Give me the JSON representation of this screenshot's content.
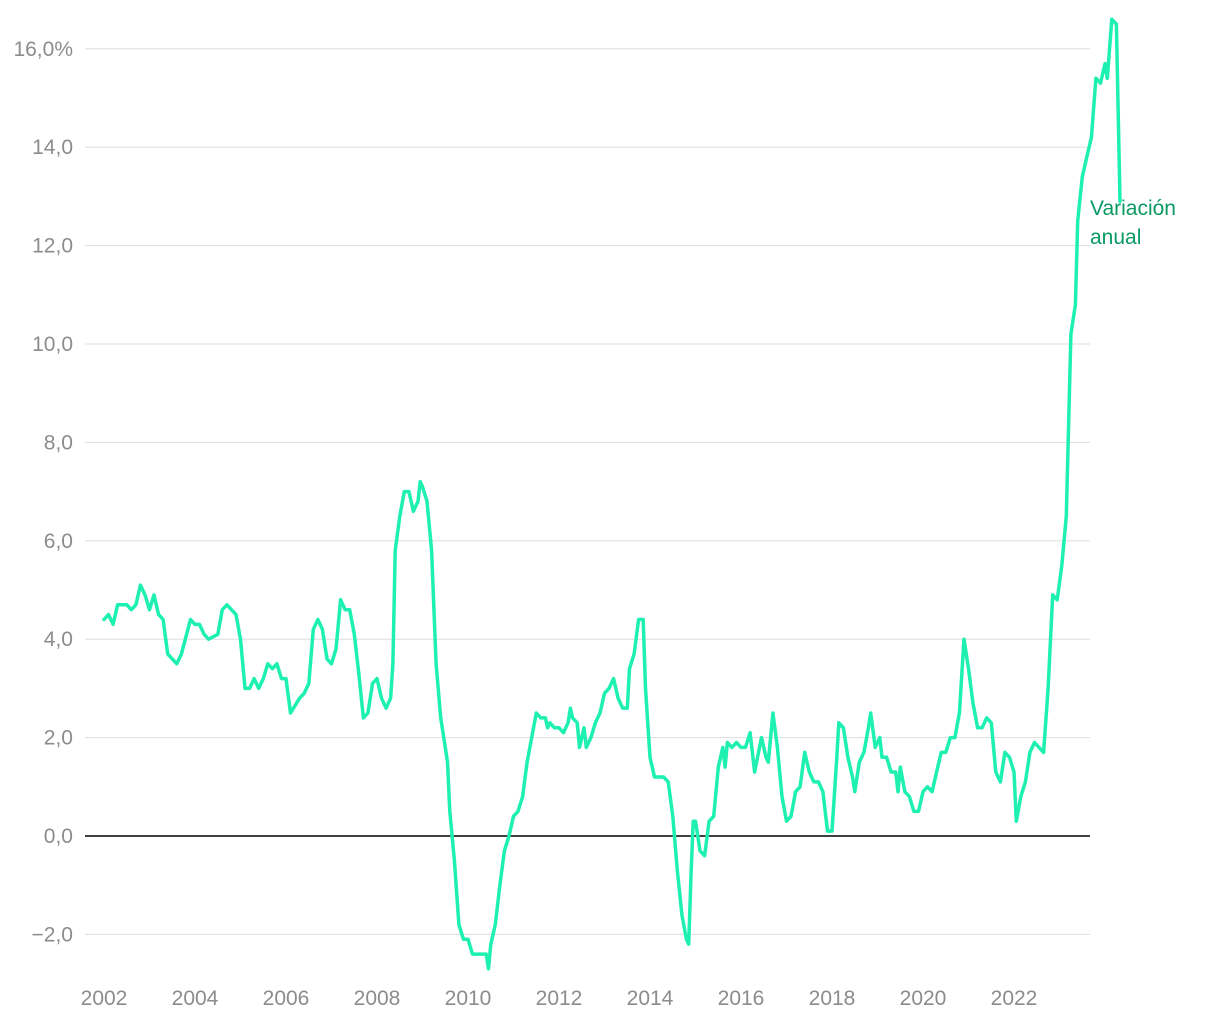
{
  "chart_data": {
    "type": "line",
    "title": "",
    "xlabel": "",
    "ylabel": "",
    "ylim": [
      -2.6,
      16.6
    ],
    "xlim": [
      2001.5,
      2024.0
    ],
    "grid": true,
    "zero_line": true,
    "colors": {
      "line": "#1df0b0",
      "label": "#0a9a63",
      "grid": "#dddddd",
      "zero_line": "#000000",
      "tick": "#8c8c8c"
    },
    "y_ticks": [
      {
        "value": 16,
        "label": "16,0%"
      },
      {
        "value": 14,
        "label": "14,0"
      },
      {
        "value": 12,
        "label": "12,0"
      },
      {
        "value": 10,
        "label": "10,0"
      },
      {
        "value": 8,
        "label": "8,0"
      },
      {
        "value": 6,
        "label": "6,0"
      },
      {
        "value": 4,
        "label": "4,0"
      },
      {
        "value": 2,
        "label": "2,0"
      },
      {
        "value": 0,
        "label": "0,0"
      },
      {
        "value": -2,
        "label": "−2,0"
      }
    ],
    "x_ticks": [
      {
        "value": 2002,
        "label": "2002"
      },
      {
        "value": 2004,
        "label": "2004"
      },
      {
        "value": 2006,
        "label": "2006"
      },
      {
        "value": 2008,
        "label": "2008"
      },
      {
        "value": 2010,
        "label": "2010"
      },
      {
        "value": 2012,
        "label": "2012"
      },
      {
        "value": 2014,
        "label": "2014"
      },
      {
        "value": 2016,
        "label": "2016"
      },
      {
        "value": 2018,
        "label": "2018"
      },
      {
        "value": 2020,
        "label": "2020"
      },
      {
        "value": 2022,
        "label": "2022"
      }
    ],
    "series": [
      {
        "label_lines": [
          "Variación",
          "anual"
        ],
        "points": [
          [
            2002.0,
            4.4
          ],
          [
            2002.1,
            4.5
          ],
          [
            2002.2,
            4.3
          ],
          [
            2002.3,
            4.7
          ],
          [
            2002.5,
            4.7
          ],
          [
            2002.6,
            4.6
          ],
          [
            2002.7,
            4.7
          ],
          [
            2002.8,
            5.1
          ],
          [
            2002.9,
            4.9
          ],
          [
            2003.0,
            4.6
          ],
          [
            2003.1,
            4.9
          ],
          [
            2003.2,
            4.5
          ],
          [
            2003.3,
            4.4
          ],
          [
            2003.4,
            3.7
          ],
          [
            2003.6,
            3.5
          ],
          [
            2003.7,
            3.7
          ],
          [
            2003.9,
            4.4
          ],
          [
            2004.0,
            4.3
          ],
          [
            2004.1,
            4.3
          ],
          [
            2004.2,
            4.1
          ],
          [
            2004.3,
            4.0
          ],
          [
            2004.5,
            4.1
          ],
          [
            2004.6,
            4.6
          ],
          [
            2004.7,
            4.7
          ],
          [
            2004.9,
            4.5
          ],
          [
            2005.0,
            4.0
          ],
          [
            2005.1,
            3.0
          ],
          [
            2005.2,
            3.0
          ],
          [
            2005.3,
            3.2
          ],
          [
            2005.4,
            3.0
          ],
          [
            2005.5,
            3.2
          ],
          [
            2005.6,
            3.5
          ],
          [
            2005.7,
            3.4
          ],
          [
            2005.8,
            3.5
          ],
          [
            2005.9,
            3.2
          ],
          [
            2006.0,
            3.2
          ],
          [
            2006.1,
            2.5
          ],
          [
            2006.3,
            2.8
          ],
          [
            2006.4,
            2.9
          ],
          [
            2006.5,
            3.1
          ],
          [
            2006.6,
            4.2
          ],
          [
            2006.7,
            4.4
          ],
          [
            2006.8,
            4.2
          ],
          [
            2006.9,
            3.6
          ],
          [
            2007.0,
            3.5
          ],
          [
            2007.1,
            3.8
          ],
          [
            2007.2,
            4.8
          ],
          [
            2007.3,
            4.6
          ],
          [
            2007.4,
            4.6
          ],
          [
            2007.5,
            4.1
          ],
          [
            2007.6,
            3.3
          ],
          [
            2007.7,
            2.4
          ],
          [
            2007.8,
            2.5
          ],
          [
            2007.9,
            3.1
          ],
          [
            2008.0,
            3.2
          ],
          [
            2008.1,
            2.8
          ],
          [
            2008.2,
            2.6
          ],
          [
            2008.3,
            2.8
          ],
          [
            2008.35,
            3.5
          ],
          [
            2008.4,
            5.8
          ],
          [
            2008.5,
            6.5
          ],
          [
            2008.6,
            7.0
          ],
          [
            2008.7,
            7.0
          ],
          [
            2008.8,
            6.6
          ],
          [
            2008.9,
            6.8
          ],
          [
            2008.95,
            7.2
          ],
          [
            2009.0,
            7.1
          ],
          [
            2009.1,
            6.8
          ],
          [
            2009.2,
            5.8
          ],
          [
            2009.3,
            3.5
          ],
          [
            2009.4,
            2.4
          ],
          [
            2009.5,
            1.8
          ],
          [
            2009.55,
            1.5
          ],
          [
            2009.6,
            0.5
          ],
          [
            2009.7,
            -0.5
          ],
          [
            2009.8,
            -1.8
          ],
          [
            2009.9,
            -2.1
          ],
          [
            2010.0,
            -2.1
          ],
          [
            2010.1,
            -2.4
          ],
          [
            2010.2,
            -2.4
          ],
          [
            2010.3,
            -2.4
          ],
          [
            2010.4,
            -2.4
          ],
          [
            2010.45,
            -2.7
          ],
          [
            2010.5,
            -2.2
          ],
          [
            2010.6,
            -1.8
          ],
          [
            2010.7,
            -1.0
          ],
          [
            2010.8,
            -0.3
          ],
          [
            2010.9,
            0.0
          ],
          [
            2011.0,
            0.4
          ],
          [
            2011.1,
            0.5
          ],
          [
            2011.2,
            0.8
          ],
          [
            2011.3,
            1.5
          ],
          [
            2011.4,
            2.0
          ],
          [
            2011.5,
            2.5
          ],
          [
            2011.6,
            2.4
          ],
          [
            2011.7,
            2.4
          ],
          [
            2011.75,
            2.2
          ],
          [
            2011.8,
            2.3
          ],
          [
            2011.9,
            2.2
          ],
          [
            2012.0,
            2.2
          ],
          [
            2012.1,
            2.1
          ],
          [
            2012.2,
            2.3
          ],
          [
            2012.25,
            2.6
          ],
          [
            2012.3,
            2.4
          ],
          [
            2012.4,
            2.3
          ],
          [
            2012.45,
            1.8
          ],
          [
            2012.55,
            2.2
          ],
          [
            2012.6,
            1.8
          ],
          [
            2012.7,
            2.0
          ],
          [
            2012.8,
            2.3
          ],
          [
            2012.9,
            2.5
          ],
          [
            2013.0,
            2.9
          ],
          [
            2013.1,
            3.0
          ],
          [
            2013.2,
            3.2
          ],
          [
            2013.3,
            2.8
          ],
          [
            2013.4,
            2.6
          ],
          [
            2013.5,
            2.6
          ],
          [
            2013.55,
            3.4
          ],
          [
            2013.65,
            3.7
          ],
          [
            2013.75,
            4.4
          ],
          [
            2013.85,
            4.4
          ],
          [
            2013.9,
            3.0
          ],
          [
            2014.0,
            1.6
          ],
          [
            2014.1,
            1.2
          ],
          [
            2014.2,
            1.2
          ],
          [
            2014.3,
            1.2
          ],
          [
            2014.4,
            1.1
          ],
          [
            2014.5,
            0.4
          ],
          [
            2014.6,
            -0.7
          ],
          [
            2014.7,
            -1.6
          ],
          [
            2014.8,
            -2.1
          ],
          [
            2014.85,
            -2.2
          ],
          [
            2014.9,
            -0.8
          ],
          [
            2014.95,
            0.3
          ],
          [
            2015.0,
            0.3
          ],
          [
            2015.1,
            -0.3
          ],
          [
            2015.2,
            -0.4
          ],
          [
            2015.3,
            0.3
          ],
          [
            2015.4,
            0.4
          ],
          [
            2015.5,
            1.4
          ],
          [
            2015.6,
            1.8
          ],
          [
            2015.65,
            1.4
          ],
          [
            2015.7,
            1.9
          ],
          [
            2015.8,
            1.8
          ],
          [
            2015.9,
            1.9
          ],
          [
            2016.0,
            1.8
          ],
          [
            2016.1,
            1.8
          ],
          [
            2016.2,
            2.1
          ],
          [
            2016.3,
            1.3
          ],
          [
            2016.45,
            2.0
          ],
          [
            2016.55,
            1.6
          ],
          [
            2016.6,
            1.5
          ],
          [
            2016.7,
            2.5
          ],
          [
            2016.8,
            1.8
          ],
          [
            2016.9,
            0.8
          ],
          [
            2017.0,
            0.3
          ],
          [
            2017.1,
            0.4
          ],
          [
            2017.2,
            0.9
          ],
          [
            2017.3,
            1.0
          ],
          [
            2017.4,
            1.7
          ],
          [
            2017.5,
            1.3
          ],
          [
            2017.6,
            1.1
          ],
          [
            2017.7,
            1.1
          ],
          [
            2017.8,
            0.9
          ],
          [
            2017.9,
            0.1
          ],
          [
            2018.0,
            0.1
          ],
          [
            2018.1,
            1.5
          ],
          [
            2018.15,
            2.3
          ],
          [
            2018.25,
            2.2
          ],
          [
            2018.35,
            1.6
          ],
          [
            2018.45,
            1.2
          ],
          [
            2018.5,
            0.9
          ],
          [
            2018.6,
            1.5
          ],
          [
            2018.7,
            1.7
          ],
          [
            2018.8,
            2.2
          ],
          [
            2018.85,
            2.5
          ],
          [
            2018.95,
            1.8
          ],
          [
            2019.05,
            2.0
          ],
          [
            2019.1,
            1.6
          ],
          [
            2019.2,
            1.6
          ],
          [
            2019.3,
            1.3
          ],
          [
            2019.4,
            1.3
          ],
          [
            2019.45,
            0.9
          ],
          [
            2019.5,
            1.4
          ],
          [
            2019.6,
            0.9
          ],
          [
            2019.7,
            0.8
          ],
          [
            2019.8,
            0.5
          ],
          [
            2019.9,
            0.5
          ],
          [
            2020.0,
            0.9
          ],
          [
            2020.1,
            1.0
          ],
          [
            2020.2,
            0.9
          ],
          [
            2020.3,
            1.3
          ],
          [
            2020.4,
            1.7
          ],
          [
            2020.5,
            1.7
          ],
          [
            2020.6,
            2.0
          ],
          [
            2020.7,
            2.0
          ],
          [
            2020.8,
            2.5
          ],
          [
            2020.9,
            4.0
          ],
          [
            2021.0,
            3.4
          ],
          [
            2021.1,
            2.7
          ],
          [
            2021.2,
            2.2
          ],
          [
            2021.3,
            2.2
          ],
          [
            2021.4,
            2.4
          ],
          [
            2021.5,
            2.3
          ],
          [
            2021.6,
            1.3
          ],
          [
            2021.7,
            1.1
          ],
          [
            2021.8,
            1.7
          ],
          [
            2021.9,
            1.6
          ],
          [
            2022.0,
            1.3
          ],
          [
            2022.05,
            0.3
          ],
          [
            2022.15,
            0.8
          ],
          [
            2022.25,
            1.1
          ],
          [
            2022.35,
            1.7
          ],
          [
            2022.45,
            1.9
          ],
          [
            2022.55,
            1.8
          ],
          [
            2022.65,
            1.7
          ],
          [
            2022.75,
            3.0
          ],
          [
            2022.85,
            4.9
          ],
          [
            2022.95,
            4.8
          ],
          [
            2023.05,
            5.5
          ],
          [
            2023.15,
            6.5
          ],
          [
            2023.25,
            10.2
          ],
          [
            2023.35,
            10.8
          ],
          [
            2023.4,
            12.5
          ],
          [
            2023.5,
            13.4
          ],
          [
            2023.6,
            13.8
          ],
          [
            2023.7,
            14.2
          ],
          [
            2023.8,
            15.4
          ],
          [
            2023.9,
            15.3
          ],
          [
            2024.0,
            15.7
          ],
          [
            2024.05,
            15.4
          ],
          [
            2024.15,
            16.6
          ],
          [
            2024.25,
            16.5
          ],
          [
            2024.33,
            12.9
          ]
        ]
      }
    ]
  }
}
